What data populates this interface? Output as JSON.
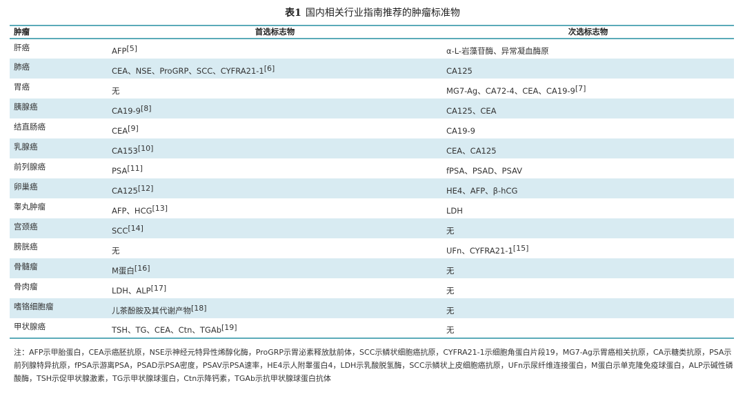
{
  "title": {
    "label": "表1",
    "text": "国内相关行业指南推荐的肿瘤标准物"
  },
  "headers": [
    "肿瘤",
    "首选标志物",
    "次选标志物"
  ],
  "rows": [
    {
      "tumor": "肝癌",
      "primary": "AFP",
      "primary_ref": "[5]",
      "secondary": "α-L-岩藻苷酶、异常凝血酶原",
      "secondary_ref": ""
    },
    {
      "tumor": "肺癌",
      "primary": "CEA、NSE、ProGRP、SCC、CYFRA21-1",
      "primary_ref": "[6]",
      "secondary": "CA125",
      "secondary_ref": ""
    },
    {
      "tumor": "胃癌",
      "primary": "无",
      "primary_ref": "",
      "secondary": "MG7-Ag、CA72-4、CEA、CA19-9",
      "secondary_ref": "[7]"
    },
    {
      "tumor": "胰腺癌",
      "primary": "CA19-9",
      "primary_ref": "[8]",
      "secondary": "CA125、CEA",
      "secondary_ref": ""
    },
    {
      "tumor": "结直肠癌",
      "primary": "CEA",
      "primary_ref": "[9]",
      "secondary": "CA19-9",
      "secondary_ref": ""
    },
    {
      "tumor": "乳腺癌",
      "primary": "CA153",
      "primary_ref": "[10]",
      "secondary": "CEA、CA125",
      "secondary_ref": ""
    },
    {
      "tumor": "前列腺癌",
      "primary": "PSA",
      "primary_ref": "[11]",
      "secondary": "fPSA、PSAD、PSAV",
      "secondary_ref": ""
    },
    {
      "tumor": "卵巢癌",
      "primary": "CA125",
      "primary_ref": "[12]",
      "secondary": "HE4、AFP、β-hCG",
      "secondary_ref": ""
    },
    {
      "tumor": "睾丸肿瘤",
      "primary": "AFP、HCG",
      "primary_ref": "[13]",
      "secondary": "LDH",
      "secondary_ref": ""
    },
    {
      "tumor": "宫颈癌",
      "primary": "SCC",
      "primary_ref": "[14]",
      "secondary": "无",
      "secondary_ref": ""
    },
    {
      "tumor": "膀胱癌",
      "primary": "无",
      "primary_ref": "",
      "secondary": "UFn、CYFRA21-1",
      "secondary_ref": "[15]"
    },
    {
      "tumor": "骨髓瘤",
      "primary": "M蛋白",
      "primary_ref": "[16]",
      "secondary": "无",
      "secondary_ref": ""
    },
    {
      "tumor": "骨肉瘤",
      "primary": "LDH、ALP",
      "primary_ref": "[17]",
      "secondary": "无",
      "secondary_ref": ""
    },
    {
      "tumor": "嗜铬细胞瘤",
      "primary": "儿茶酚胺及其代谢产物",
      "primary_ref": "[18]",
      "secondary": "无",
      "secondary_ref": ""
    },
    {
      "tumor": "甲状腺癌",
      "primary": "TSH、TG、CEA、Ctn、TGAb",
      "primary_ref": "[19]",
      "secondary": "无",
      "secondary_ref": ""
    }
  ],
  "note": "注：AFP示甲胎蛋白，CEA示癌胚抗原，NSE示神经元特异性烯醇化酶，ProGRP示胃泌素释放肽前体，SCC示鳞状细胞癌抗原，CYFRA21-1示细胞角蛋白片段19，MG7-Ag示胃癌相关抗原，CA示糖类抗原，PSA示前列腺特异抗原，fPSA示游离PSA，PSAD示PSA密度，PSAV示PSA速率，HE4示人附睾蛋白4，LDH示乳酸脱氢酶，SCC示鳞状上皮细胞癌抗原，UFn示尿纤维连接蛋白，M蛋白示单克隆免疫球蛋白，ALP示碱性磷酸酶，TSH示促甲状腺激素，TG示甲状腺球蛋白，Ctn示降钙素，TGAb示抗甲状腺球蛋白抗体"
}
